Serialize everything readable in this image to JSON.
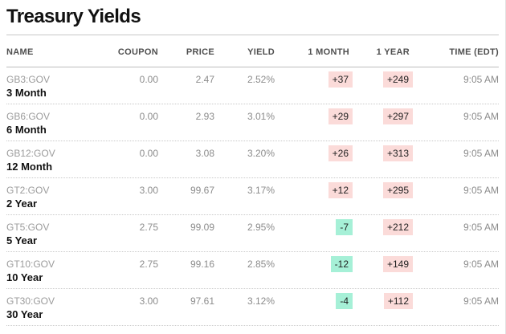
{
  "title": "Treasury Yields",
  "table": {
    "columns": [
      "NAME",
      "COUPON",
      "PRICE",
      "YIELD",
      "1 MONTH",
      "1 YEAR",
      "TIME (EDT)"
    ],
    "rows": [
      {
        "ticker": "GB3:GOV",
        "maturity": "3 Month",
        "coupon": "0.00",
        "price": "2.47",
        "yield": "2.52%",
        "one_month": "+37",
        "one_month_dir": "up",
        "one_year": "+249",
        "one_year_dir": "up",
        "time": "9:05 AM"
      },
      {
        "ticker": "GB6:GOV",
        "maturity": "6 Month",
        "coupon": "0.00",
        "price": "2.93",
        "yield": "3.01%",
        "one_month": "+29",
        "one_month_dir": "up",
        "one_year": "+297",
        "one_year_dir": "up",
        "time": "9:05 AM"
      },
      {
        "ticker": "GB12:GOV",
        "maturity": "12 Month",
        "coupon": "0.00",
        "price": "3.08",
        "yield": "3.20%",
        "one_month": "+26",
        "one_month_dir": "up",
        "one_year": "+313",
        "one_year_dir": "up",
        "time": "9:05 AM"
      },
      {
        "ticker": "GT2:GOV",
        "maturity": "2 Year",
        "coupon": "3.00",
        "price": "99.67",
        "yield": "3.17%",
        "one_month": "+12",
        "one_month_dir": "up",
        "one_year": "+295",
        "one_year_dir": "up",
        "time": "9:05 AM"
      },
      {
        "ticker": "GT5:GOV",
        "maturity": "5 Year",
        "coupon": "2.75",
        "price": "99.09",
        "yield": "2.95%",
        "one_month": "-7",
        "one_month_dir": "down",
        "one_year": "+212",
        "one_year_dir": "up",
        "time": "9:05 AM"
      },
      {
        "ticker": "GT10:GOV",
        "maturity": "10 Year",
        "coupon": "2.75",
        "price": "99.16",
        "yield": "2.85%",
        "one_month": "-12",
        "one_month_dir": "down",
        "one_year": "+149",
        "one_year_dir": "up",
        "time": "9:05 AM"
      },
      {
        "ticker": "GT30:GOV",
        "maturity": "30 Year",
        "coupon": "3.00",
        "price": "97.61",
        "yield": "3.12%",
        "one_month": "-4",
        "one_month_dir": "down",
        "one_year": "+112",
        "one_year_dir": "up",
        "time": "9:05 AM"
      }
    ]
  },
  "colors": {
    "change_up_bg": "#fbdbd9",
    "change_down_bg": "#a6f0d7",
    "badge_text": "#1f1f1f"
  }
}
